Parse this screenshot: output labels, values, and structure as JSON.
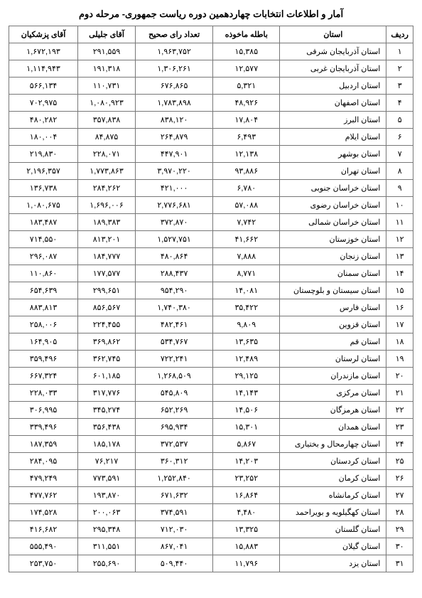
{
  "title": "آمار و اطلاعات انتخابات چهاردهمین دوره ریاست جمهوری- مرحله دوم",
  "columns": [
    "ردیف",
    "استان",
    "باطله ماخوذه",
    "تعداد رای صحیح",
    "آقای جلیلی",
    "آقای پزشکیان"
  ],
  "rows": [
    {
      "idx": "۱",
      "province": "استان آذربایجان شرقی",
      "void": "۱۵,۳۸۵",
      "valid": "۱,۹۶۳,۷۵۲",
      "jalili": "۲۹۱,۵۵۹",
      "pezeshkian": "۱,۶۷۲,۱۹۳"
    },
    {
      "idx": "۲",
      "province": "استان آذربایجان غربی",
      "void": "۱۲,۵۷۷",
      "valid": "۱,۳۰۶,۲۶۱",
      "jalili": "۱۹۱,۳۱۸",
      "pezeshkian": "۱,۱۱۴,۹۴۳"
    },
    {
      "idx": "۳",
      "province": "استان اردبیل",
      "void": "۵,۳۲۱",
      "valid": "۶۷۶,۸۶۵",
      "jalili": "۱۱۰,۷۳۱",
      "pezeshkian": "۵۶۶,۱۳۴"
    },
    {
      "idx": "۴",
      "province": "استان اصفهان",
      "void": "۴۸,۹۲۶",
      "valid": "۱,۷۸۳,۸۹۸",
      "jalili": "۱,۰۸۰,۹۲۳",
      "pezeshkian": "۷۰۲,۹۷۵"
    },
    {
      "idx": "۵",
      "province": "استان البرز",
      "void": "۱۷,۸۰۴",
      "valid": "۸۳۸,۱۲۰",
      "jalili": "۳۵۷,۸۳۸",
      "pezeshkian": "۴۸۰,۲۸۲"
    },
    {
      "idx": "۶",
      "province": "استان ایلام",
      "void": "۶,۴۹۳",
      "valid": "۲۶۴,۸۷۹",
      "jalili": "۸۴,۸۷۵",
      "pezeshkian": "۱۸۰,۰۰۴"
    },
    {
      "idx": "۷",
      "province": "استان بوشهر",
      "void": "۱۲,۱۳۸",
      "valid": "۴۴۷,۹۰۱",
      "jalili": "۲۲۸,۰۷۱",
      "pezeshkian": "۲۱۹,۸۳۰"
    },
    {
      "idx": "۸",
      "province": "استان تهران",
      "void": "۹۳,۸۸۶",
      "valid": "۳,۹۷۰,۲۲۰",
      "jalili": "۱,۷۷۳,۸۶۳",
      "pezeshkian": "۲,۱۹۶,۳۵۷"
    },
    {
      "idx": "۹",
      "province": "استان خراسان جنوبی",
      "void": "۶,۷۸۰",
      "valid": "۴۲۱,۰۰۰",
      "jalili": "۲۸۴,۲۶۲",
      "pezeshkian": "۱۳۶,۷۳۸"
    },
    {
      "idx": "۱۰",
      "province": "استان خراسان رضوی",
      "void": "۵۷,۰۸۸",
      "valid": "۲,۷۷۶,۶۸۱",
      "jalili": "۱,۶۹۶,۰۰۶",
      "pezeshkian": "۱,۰۸۰,۶۷۵"
    },
    {
      "idx": "۱۱",
      "province": "استان خراسان شمالی",
      "void": "۷,۷۴۲",
      "valid": "۳۷۲,۸۷۰",
      "jalili": "۱۸۹,۳۸۳",
      "pezeshkian": "۱۸۳,۴۸۷"
    },
    {
      "idx": "۱۲",
      "province": "استان خوزستان",
      "void": "۴۱,۶۶۲",
      "valid": "۱,۵۲۷,۷۵۱",
      "jalili": "۸۱۳,۲۰۱",
      "pezeshkian": "۷۱۴,۵۵۰"
    },
    {
      "idx": "۱۳",
      "province": "استان زنجان",
      "void": "۷,۸۸۸",
      "valid": "۴۸۰,۸۶۴",
      "jalili": "۱۸۴,۷۷۷",
      "pezeshkian": "۲۹۶,۰۸۷"
    },
    {
      "idx": "۱۴",
      "province": "استان سمنان",
      "void": "۸,۷۷۱",
      "valid": "۲۸۸,۴۳۷",
      "jalili": "۱۷۷,۵۷۷",
      "pezeshkian": "۱۱۰,۸۶۰"
    },
    {
      "idx": "۱۵",
      "province": "استان سیستان و بلوچستان",
      "void": "۱۴,۰۸۱",
      "valid": "۹۵۴,۲۹۰",
      "jalili": "۲۹۹,۶۵۱",
      "pezeshkian": "۶۵۴,۶۳۹"
    },
    {
      "idx": "۱۶",
      "province": "استان فارس",
      "void": "۳۵,۴۲۲",
      "valid": "۱,۷۴۰,۳۸۰",
      "jalili": "۸۵۶,۵۶۷",
      "pezeshkian": "۸۸۳,۸۱۳"
    },
    {
      "idx": "۱۷",
      "province": "استان قزوین",
      "void": "۹,۸۰۹",
      "valid": "۴۸۲,۴۶۱",
      "jalili": "۲۲۴,۴۵۵",
      "pezeshkian": "۲۵۸,۰۰۶"
    },
    {
      "idx": "۱۸",
      "province": "استان قم",
      "void": "۱۳,۶۳۵",
      "valid": "۵۳۴,۷۶۷",
      "jalili": "۳۶۹,۸۶۲",
      "pezeshkian": "۱۶۴,۹۰۵"
    },
    {
      "idx": "۱۹",
      "province": "استان لرستان",
      "void": "۱۲,۴۸۹",
      "valid": "۷۲۲,۲۴۱",
      "jalili": "۳۶۲,۷۴۵",
      "pezeshkian": "۳۵۹,۴۹۶"
    },
    {
      "idx": "۲۰",
      "province": "استان مازندران",
      "void": "۲۹,۱۲۵",
      "valid": "۱,۲۶۸,۵۰۹",
      "jalili": "۶۰۱,۱۸۵",
      "pezeshkian": "۶۶۷,۳۲۴"
    },
    {
      "idx": "۲۱",
      "province": "استان مرکزی",
      "void": "۱۴,۱۴۳",
      "valid": "۵۴۵,۸۰۹",
      "jalili": "۳۱۷,۷۷۶",
      "pezeshkian": "۲۲۸,۰۳۳"
    },
    {
      "idx": "۲۲",
      "province": "استان هرمزگان",
      "void": "۱۴,۵۰۶",
      "valid": "۶۵۲,۲۶۹",
      "jalili": "۳۴۵,۲۷۴",
      "pezeshkian": "۳۰۶,۹۹۵"
    },
    {
      "idx": "۲۳",
      "province": "استان همدان",
      "void": "۱۵,۳۰۱",
      "valid": "۶۹۵,۹۳۴",
      "jalili": "۳۵۶,۴۳۸",
      "pezeshkian": "۳۳۹,۴۹۶"
    },
    {
      "idx": "۲۴",
      "province": "استان چهارمحال و بختیاری",
      "void": "۵,۸۶۷",
      "valid": "۳۷۲,۵۳۷",
      "jalili": "۱۸۵,۱۷۸",
      "pezeshkian": "۱۸۷,۳۵۹"
    },
    {
      "idx": "۲۵",
      "province": "استان کردستان",
      "void": "۱۴,۲۰۳",
      "valid": "۳۶۰,۳۱۲",
      "jalili": "۷۶,۲۱۷",
      "pezeshkian": "۲۸۴,۰۹۵"
    },
    {
      "idx": "۲۶",
      "province": "استان کرمان",
      "void": "۲۳,۲۵۲",
      "valid": "۱,۲۵۲,۸۴۰",
      "jalili": "۷۷۳,۵۹۱",
      "pezeshkian": "۴۷۹,۲۴۹"
    },
    {
      "idx": "۲۷",
      "province": "استان کرمانشاه",
      "void": "۱۶,۸۶۴",
      "valid": "۶۷۱,۶۳۲",
      "jalili": "۱۹۳,۸۷۰",
      "pezeshkian": "۴۷۷,۷۶۲"
    },
    {
      "idx": "۲۸",
      "province": "استان کهگیلویه و بویراحمد",
      "void": "۴,۴۸۰",
      "valid": "۳۷۴,۵۹۱",
      "jalili": "۲۰۰,۰۶۳",
      "pezeshkian": "۱۷۴,۵۲۸"
    },
    {
      "idx": "۲۹",
      "province": "استان گلستان",
      "void": "۱۳,۳۲۵",
      "valid": "۷۱۲,۰۳۰",
      "jalili": "۲۹۵,۳۴۸",
      "pezeshkian": "۴۱۶,۶۸۲"
    },
    {
      "idx": "۳۰",
      "province": "استان گیلان",
      "void": "۱۵,۸۸۳",
      "valid": "۸۶۷,۰۴۱",
      "jalili": "۳۱۱,۵۵۱",
      "pezeshkian": "۵۵۵,۴۹۰"
    },
    {
      "idx": "۳۱",
      "province": "استان یزد",
      "void": "۱۱,۷۹۶",
      "valid": "۵۰۹,۴۴۰",
      "jalili": "۲۵۵,۶۹۰",
      "pezeshkian": "۲۵۳,۷۵۰"
    }
  ],
  "styles": {
    "border_color": "#777777",
    "text_color": "#000000",
    "background_color": "#ffffff",
    "title_fontsize": 13,
    "cell_fontsize": 11
  }
}
